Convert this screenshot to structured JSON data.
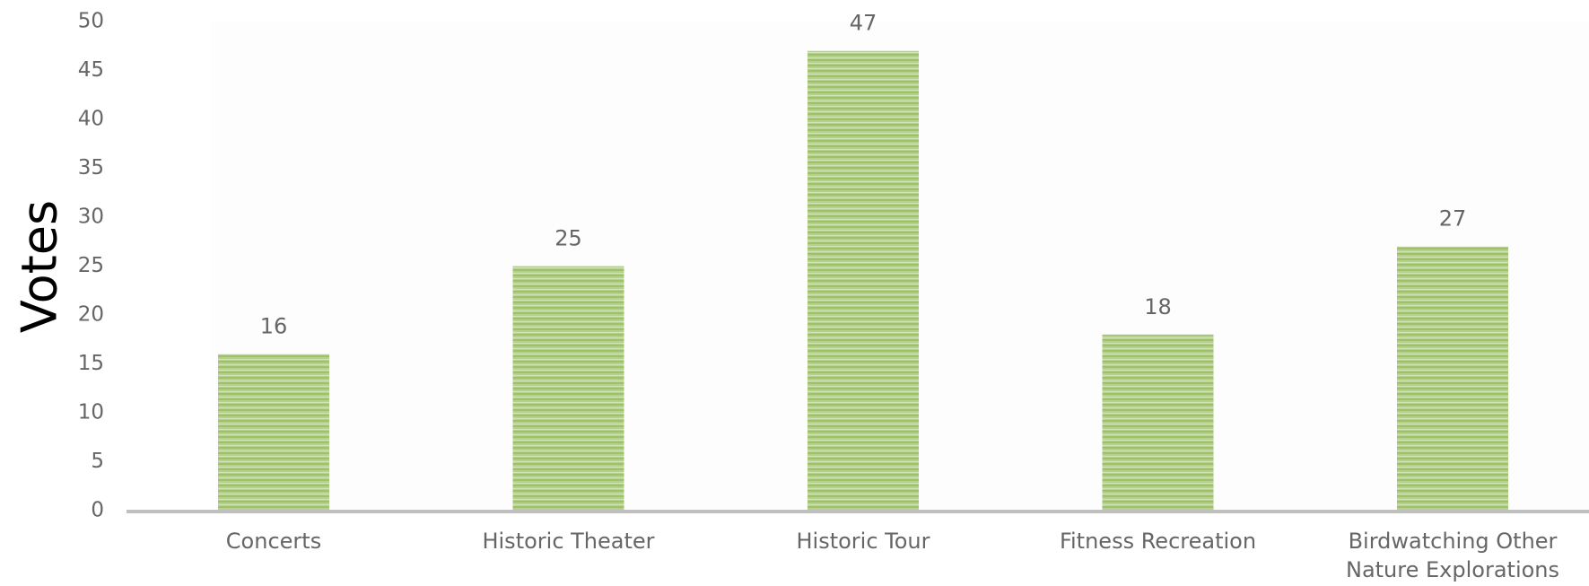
{
  "chart_data": {
    "type": "bar",
    "ylabel": "Votes",
    "categories": [
      "Concerts",
      "Historic Theater",
      "Historic Tour",
      "Fitness Recreation",
      "Birdwatching Other Nature Explorations"
    ],
    "values": [
      16,
      25,
      47,
      18,
      27
    ],
    "color": "#a9c97a",
    "ylim": [
      0,
      50
    ],
    "yticks": [
      0,
      5,
      10,
      15,
      20,
      25,
      30,
      35,
      40,
      45,
      50
    ],
    "grid": false
  }
}
